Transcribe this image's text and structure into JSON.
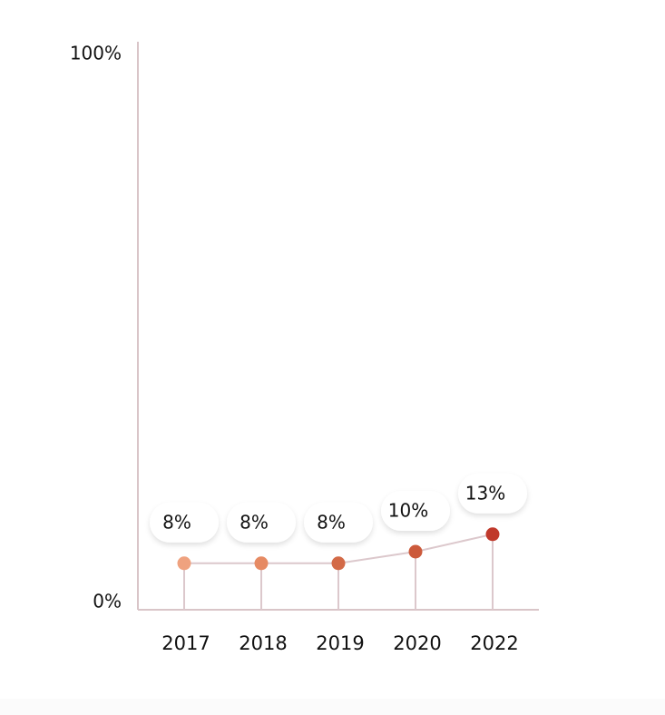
{
  "chart_data": {
    "type": "line",
    "categories": [
      "2017",
      "2018",
      "2019",
      "2020",
      "2022"
    ],
    "values": [
      8,
      8,
      8,
      10,
      13
    ],
    "data_labels": [
      "8%",
      "8%",
      "8%",
      "10%",
      "13%"
    ],
    "ylim": [
      0,
      100
    ],
    "ytick_labels": [
      "0%",
      "100%"
    ],
    "point_colors": [
      "#efa27f",
      "#e68a63",
      "#d36a47",
      "#cc5a3b",
      "#c0392b"
    ],
    "line_color": "#dcc8cc",
    "axis_color": "#d9c5c8",
    "grid": false,
    "legend": "none"
  }
}
